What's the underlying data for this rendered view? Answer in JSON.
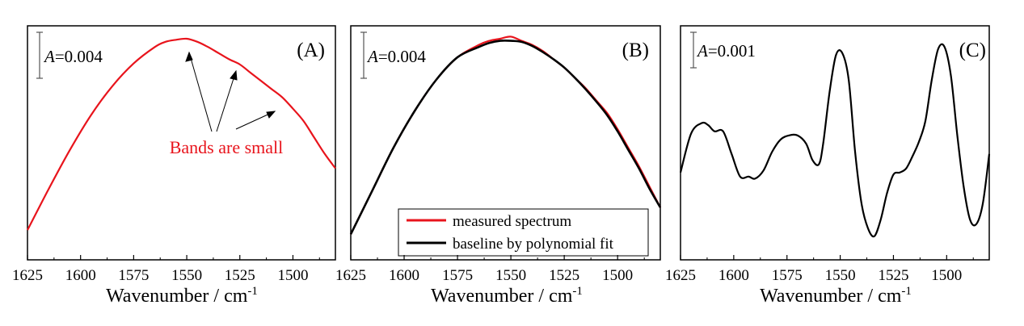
{
  "figure": {
    "panels": [
      {
        "letter": "(A)",
        "scale_bar_label": "=0.004",
        "scale_bar_var": "A",
        "xlabel": "Wavenumber / cm",
        "xlabel_sup": "-1",
        "x_ticks": [
          "1625",
          "1600",
          "1575",
          "1550",
          "1525",
          "1500"
        ],
        "annotation": "Bands are small"
      },
      {
        "letter": "(B)",
        "scale_bar_label": "=0.004",
        "scale_bar_var": "A",
        "xlabel": "Wavenumber / cm",
        "xlabel_sup": "-1",
        "x_ticks": [
          "1625",
          "1600",
          "1575",
          "1550",
          "1525",
          "1500"
        ],
        "legend": [
          "measured spectrum",
          "baseline by polynomial fit"
        ]
      },
      {
        "letter": "(C)",
        "scale_bar_label": "=0.001",
        "scale_bar_var": "A",
        "xlabel": "Wavenumber / cm",
        "xlabel_sup": "-1",
        "x_ticks": [
          "1625",
          "1600",
          "1575",
          "1550",
          "1525",
          "1500"
        ]
      }
    ]
  },
  "chart_data": [
    {
      "type": "line",
      "panel": "(A)",
      "xlabel": "Wavenumber / cm-1",
      "ylabel": "",
      "xlim": [
        1625,
        1480
      ],
      "ylim": [
        0,
        1
      ],
      "x_reversed": true,
      "grid": false,
      "annotations": [
        "A=0.004",
        "Bands are small"
      ],
      "series": [
        {
          "color": "#e8141c",
          "x": [
            1625,
            1615,
            1605,
            1595,
            1585,
            1575,
            1565,
            1560,
            1555,
            1550,
            1545,
            1540,
            1535,
            1530,
            1525,
            1520,
            1515,
            1510,
            1505,
            1500,
            1495,
            1490,
            1485,
            1480
          ],
          "y": [
            0.07,
            0.27,
            0.46,
            0.63,
            0.77,
            0.88,
            0.96,
            0.985,
            0.995,
            1.0,
            0.985,
            0.96,
            0.93,
            0.9,
            0.875,
            0.835,
            0.795,
            0.755,
            0.715,
            0.66,
            0.6,
            0.52,
            0.44,
            0.37
          ]
        }
      ]
    },
    {
      "type": "line",
      "panel": "(B)",
      "xlabel": "Wavenumber / cm-1",
      "ylabel": "",
      "xlim": [
        1625,
        1480
      ],
      "ylim": [
        0,
        1
      ],
      "x_reversed": true,
      "grid": false,
      "legend_position": "bottom-right",
      "annotations": [
        "A=0.004"
      ],
      "series": [
        {
          "name": "measured spectrum",
          "color": "#e8141c",
          "x": [
            1625,
            1615,
            1605,
            1595,
            1585,
            1575,
            1565,
            1560,
            1555,
            1550,
            1545,
            1540,
            1535,
            1530,
            1525,
            1520,
            1515,
            1510,
            1505,
            1500,
            1495,
            1490,
            1485,
            1480
          ],
          "y": [
            0.05,
            0.26,
            0.47,
            0.65,
            0.8,
            0.91,
            0.97,
            0.99,
            1.0,
            1.01,
            0.99,
            0.97,
            0.94,
            0.9,
            0.86,
            0.81,
            0.76,
            0.7,
            0.64,
            0.56,
            0.47,
            0.38,
            0.28,
            0.18
          ]
        },
        {
          "name": "baseline by polynomial fit",
          "color": "#000000",
          "x": [
            1625,
            1615,
            1605,
            1595,
            1585,
            1575,
            1565,
            1560,
            1555,
            1550,
            1545,
            1540,
            1535,
            1530,
            1525,
            1520,
            1515,
            1510,
            1505,
            1500,
            1495,
            1490,
            1485,
            1480
          ],
          "y": [
            0.05,
            0.26,
            0.47,
            0.65,
            0.8,
            0.91,
            0.96,
            0.98,
            0.99,
            0.99,
            0.985,
            0.965,
            0.935,
            0.9,
            0.86,
            0.81,
            0.755,
            0.695,
            0.63,
            0.55,
            0.46,
            0.37,
            0.27,
            0.18
          ]
        }
      ]
    },
    {
      "type": "line",
      "panel": "(C)",
      "xlabel": "Wavenumber / cm-1",
      "ylabel": "",
      "xlim": [
        1625,
        1480
      ],
      "ylim": [
        0,
        1
      ],
      "x_reversed": true,
      "grid": false,
      "annotations": [
        "A=0.001"
      ],
      "series": [
        {
          "color": "#000000",
          "x": [
            1625,
            1620,
            1615,
            1612,
            1609,
            1605,
            1601,
            1597,
            1593,
            1590,
            1586,
            1582,
            1578,
            1574,
            1570,
            1566,
            1563,
            1560,
            1558,
            1555,
            1552,
            1549,
            1546,
            1543,
            1540,
            1537,
            1534,
            1531,
            1528,
            1525,
            1522,
            1519,
            1516,
            1513,
            1510,
            1507,
            1504,
            1501,
            1498,
            1495,
            1492,
            1489,
            1486,
            1483,
            1480
          ],
          "y": [
            0.35,
            0.54,
            0.59,
            0.58,
            0.55,
            0.55,
            0.44,
            0.33,
            0.33,
            0.32,
            0.36,
            0.45,
            0.51,
            0.53,
            0.53,
            0.49,
            0.41,
            0.39,
            0.49,
            0.74,
            0.92,
            0.93,
            0.8,
            0.45,
            0.2,
            0.08,
            0.04,
            0.12,
            0.25,
            0.34,
            0.35,
            0.37,
            0.43,
            0.5,
            0.6,
            0.8,
            0.95,
            0.96,
            0.82,
            0.53,
            0.28,
            0.12,
            0.1,
            0.2,
            0.44
          ]
        }
      ]
    }
  ]
}
